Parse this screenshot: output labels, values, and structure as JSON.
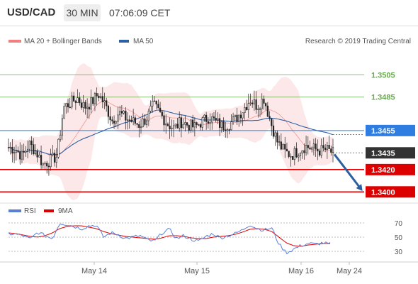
{
  "header": {
    "symbol": "USD/CAD",
    "timeframe": "30 MIN",
    "time": "07:06:09 CET"
  },
  "legend": {
    "ma20_label": "MA 20 + Bollinger Bands",
    "ma50_label": "MA 50",
    "ma20_color": "#f08080",
    "ma50_color": "#2e5fa3",
    "credit": "Research © 2019 Trading Central"
  },
  "price_levels": {
    "resistance_2": "1.3505",
    "resistance_1": "1.3485",
    "pivot": "1.3455",
    "last": "1.3435",
    "support_1": "1.3420",
    "support_2": "1.3400",
    "resistance_color": "#6aa84f",
    "pivot_color": "#2f7de1",
    "support_color": "#dd0000",
    "last_color": "#333333"
  },
  "indicator": {
    "rsi_label": "RSI",
    "ma_label": "9MA",
    "rsi_color": "#5b7fd6",
    "ma_color": "#dd0000",
    "levels": [
      "70",
      "50",
      "30"
    ]
  },
  "x_axis": [
    "May 14",
    "May 15",
    "May 16",
    "May 24"
  ],
  "chart_data": {
    "type": "candlestick",
    "instrument": "USD/CAD",
    "interval": "30 MIN",
    "ylim": [
      1.339,
      1.353
    ],
    "close_path": [
      1.344,
      1.3438,
      1.3432,
      1.3443,
      1.3436,
      1.3425,
      1.3428,
      1.3432,
      1.3476,
      1.348,
      1.3484,
      1.3476,
      1.348,
      1.3488,
      1.3478,
      1.3464,
      1.3471,
      1.3466,
      1.3463,
      1.346,
      1.3466,
      1.3478,
      1.347,
      1.3461,
      1.3457,
      1.3463,
      1.346,
      1.3458,
      1.3463,
      1.3467,
      1.3463,
      1.3459,
      1.3461,
      1.3466,
      1.3474,
      1.3483,
      1.3477,
      1.3484,
      1.3462,
      1.3444,
      1.3436,
      1.3433,
      1.3437,
      1.3441,
      1.3439,
      1.3437,
      1.3438,
      1.3435
    ],
    "last_price": 1.3435,
    "ma50_trend": "rising then flattening, ends near 1.3452",
    "projection": {
      "from": 1.3435,
      "to": 1.34,
      "direction": "down"
    },
    "rsi_ylim": [
      20,
      80
    ],
    "rsi_levels": [
      70,
      50,
      30
    ],
    "rsi_path": [
      55,
      54,
      52,
      47,
      57,
      52,
      48,
      70,
      68,
      65,
      62,
      66,
      67,
      50,
      56,
      54,
      48,
      50,
      52,
      46,
      44,
      56,
      61,
      48,
      52,
      47,
      44,
      51,
      55,
      49,
      52,
      55,
      60,
      68,
      62,
      60,
      63,
      40,
      28,
      33,
      38,
      41,
      40,
      42,
      40
    ],
    "rsi_ma_path": [
      56,
      55,
      53,
      51,
      50,
      52,
      56,
      62,
      65,
      66,
      66,
      64,
      62,
      58,
      55,
      53,
      51,
      50,
      49,
      48,
      47,
      49,
      52,
      52,
      51,
      49,
      48,
      48,
      50,
      51,
      52,
      54,
      57,
      61,
      62,
      61,
      58,
      50,
      42,
      38,
      37,
      39,
      40,
      41,
      41
    ]
  }
}
